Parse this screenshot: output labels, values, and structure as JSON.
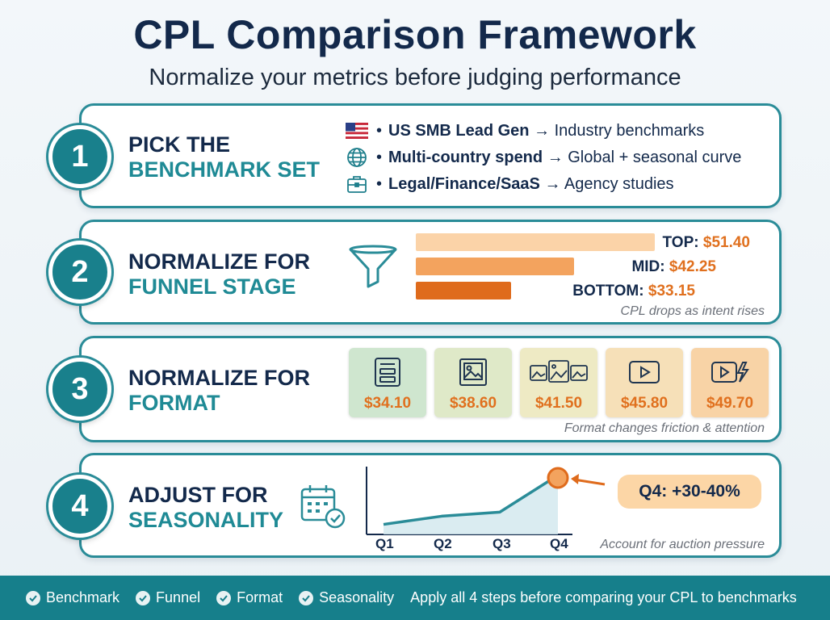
{
  "title": "CPL Comparison Framework",
  "subtitle": "Normalize your metrics before judging performance",
  "steps": [
    {
      "number": "1",
      "title_line1": "PICK THE",
      "title_line2": "BENCHMARK SET",
      "items": [
        {
          "icon": "us-flag-icon",
          "bold": "US SMB Lead Gen",
          "rest": "→ Industry benchmarks"
        },
        {
          "icon": "globe-icon",
          "bold": "Multi-country spend",
          "rest": "→ Global + seasonal curve"
        },
        {
          "icon": "briefcase-icon",
          "bold": "Legal/Finance/SaaS",
          "rest": "→ Agency studies"
        }
      ]
    },
    {
      "number": "2",
      "title_line1": "NORMALIZE FOR",
      "title_line2": "FUNNEL STAGE",
      "bars": [
        {
          "label": "TOP:",
          "value": "$51.40",
          "amount": 51.4,
          "color": "#fbd3a8"
        },
        {
          "label": "MID:",
          "value": "$42.25",
          "amount": 42.25,
          "color": "#f3a35e"
        },
        {
          "label": "BOTTOM:",
          "value": "$33.15",
          "amount": 33.15,
          "color": "#df6b1c"
        }
      ],
      "note": "CPL drops as intent rises"
    },
    {
      "number": "3",
      "title_line1": "NORMALIZE FOR",
      "title_line2": "FORMAT",
      "formats": [
        {
          "icon": "text-ad-icon",
          "value": "$34.10",
          "color": "#cfe6cf"
        },
        {
          "icon": "image-icon",
          "value": "$38.60",
          "color": "#dfe9c8"
        },
        {
          "icon": "carousel-icon",
          "value": "$41.50",
          "color": "#eeeac4"
        },
        {
          "icon": "video-icon",
          "value": "$45.80",
          "color": "#f6e0b8"
        },
        {
          "icon": "video-flash-icon",
          "value": "$49.70",
          "color": "#f8d3a6"
        }
      ],
      "note": "Format changes friction & attention"
    },
    {
      "number": "4",
      "title_line1": "ADJUST FOR",
      "title_line2": "SEASONALITY",
      "quarters": [
        "Q1",
        "Q2",
        "Q3",
        "Q4"
      ],
      "trend": [
        1.0,
        1.06,
        1.09,
        1.36
      ],
      "callout": "Q4: +30-40%",
      "note": "Account for auction pressure"
    }
  ],
  "footer": {
    "checks": [
      "Benchmark",
      "Funnel",
      "Format",
      "Seasonality"
    ],
    "message": "Apply all 4 steps before comparing your CPL to benchmarks"
  },
  "colors": {
    "teal": "#1f8a95",
    "navy": "#13294b",
    "orange": "#e0701e"
  }
}
